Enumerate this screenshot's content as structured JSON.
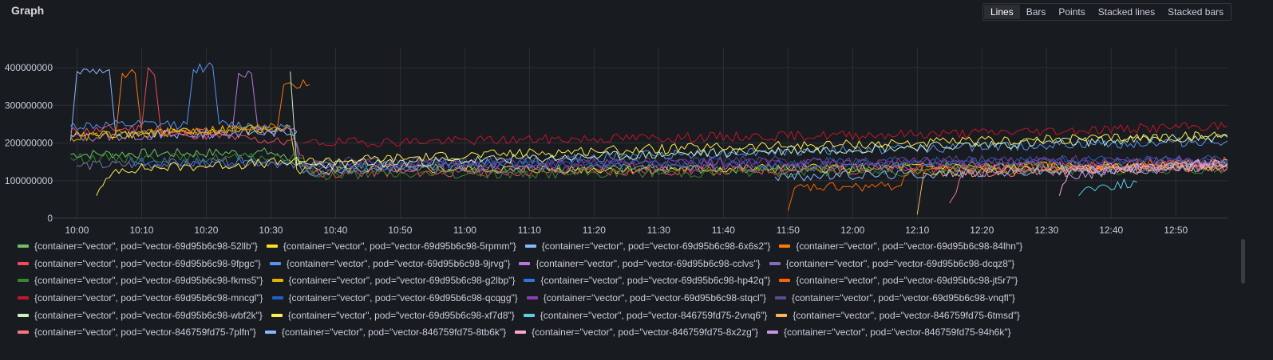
{
  "panel": {
    "title": "Graph"
  },
  "view_options": [
    {
      "label": "Lines",
      "active": true
    },
    {
      "label": "Bars",
      "active": false
    },
    {
      "label": "Points",
      "active": false
    },
    {
      "label": "Stacked lines",
      "active": false
    },
    {
      "label": "Stacked bars",
      "active": false
    }
  ],
  "chart_data": {
    "type": "line",
    "title": "",
    "xlabel": "",
    "ylabel": "",
    "x_ticks": [
      "10:00",
      "10:10",
      "10:20",
      "10:30",
      "10:40",
      "10:50",
      "11:00",
      "11:10",
      "11:20",
      "11:30",
      "11:40",
      "11:50",
      "12:00",
      "12:10",
      "12:20",
      "12:30",
      "12:40",
      "12:50"
    ],
    "y_ticks": [
      "0",
      "100000000",
      "200000000",
      "300000000",
      "400000000"
    ],
    "x_range": [
      "09:59",
      "12:58"
    ],
    "ylim": [
      0,
      420000000
    ],
    "grid": true,
    "legend_position": "bottom",
    "series": [
      {
        "name": "{container=\"vector\", pod=\"vector-69d95b6c98-52llb\"}",
        "color": "#73bf69",
        "start": "09:59",
        "end": "12:58",
        "segments": [
          [
            "09:59",
            170000000
          ],
          [
            "10:30",
            175000000
          ],
          [
            "10:35",
            140000000
          ],
          [
            "11:30",
            130000000
          ],
          [
            "12:58",
            145000000
          ]
        ]
      },
      {
        "name": "{container=\"vector\", pod=\"vector-69d95b6c98-5rpmm\"}",
        "color": "#fade2a",
        "start": "09:59",
        "end": "12:58",
        "segments": [
          [
            "09:59",
            220000000
          ],
          [
            "10:33",
            235000000
          ],
          [
            "10:34",
            130000000
          ],
          [
            "11:30",
            130000000
          ],
          [
            "12:58",
            140000000
          ]
        ]
      },
      {
        "name": "{container=\"vector\", pod=\"vector-69d95b6c98-6x6s2\"}",
        "color": "#8ab8ff",
        "start": "09:59",
        "end": "10:34",
        "segments": [
          [
            "09:59",
            205000000
          ],
          [
            "10:00",
            390000000
          ],
          [
            "10:05",
            395000000
          ],
          [
            "10:06",
            220000000
          ],
          [
            "10:34",
            230000000
          ]
        ]
      },
      {
        "name": "{container=\"vector\", pod=\"vector-69d95b6c98-84lhn\"}",
        "color": "#ff780a",
        "start": "10:06",
        "end": "10:36",
        "segments": [
          [
            "10:06",
            220000000
          ],
          [
            "10:07",
            385000000
          ],
          [
            "10:09",
            385000000
          ],
          [
            "10:10",
            230000000
          ],
          [
            "10:31",
            240000000
          ],
          [
            "10:32",
            355000000
          ],
          [
            "10:36",
            355000000
          ]
        ]
      },
      {
        "name": "{container=\"vector\", pod=\"vector-69d95b6c98-9fpgc\"}",
        "color": "#f2495c",
        "start": "09:59",
        "end": "12:58",
        "segments": [
          [
            "09:59",
            230000000
          ],
          [
            "10:10",
            240000000
          ],
          [
            "10:11",
            400000000
          ],
          [
            "10:12",
            380000000
          ],
          [
            "10:13",
            230000000
          ],
          [
            "10:34",
            200000000
          ],
          [
            "10:36",
            120000000
          ],
          [
            "12:58",
            135000000
          ]
        ]
      },
      {
        "name": "{container=\"vector\", pod=\"vector-69d95b6c98-9jrvg\"}",
        "color": "#5794f2",
        "start": "09:59",
        "end": "12:58",
        "segments": [
          [
            "09:59",
            245000000
          ],
          [
            "10:17",
            250000000
          ],
          [
            "10:18",
            395000000
          ],
          [
            "10:21",
            405000000
          ],
          [
            "10:22",
            250000000
          ],
          [
            "10:33",
            240000000
          ],
          [
            "10:35",
            120000000
          ],
          [
            "11:30",
            170000000
          ],
          [
            "12:58",
            205000000
          ]
        ]
      },
      {
        "name": "{container=\"vector\", pod=\"vector-69d95b6c98-cclvs\"}",
        "color": "#b877d9",
        "start": "09:59",
        "end": "10:34",
        "segments": [
          [
            "09:59",
            215000000
          ],
          [
            "10:24",
            225000000
          ],
          [
            "10:25",
            385000000
          ],
          [
            "10:27",
            385000000
          ],
          [
            "10:28",
            235000000
          ],
          [
            "10:34",
            230000000
          ]
        ]
      },
      {
        "name": "{container=\"vector\", pod=\"vector-69d95b6c98-dcqz8\"}",
        "color": "#806eb7",
        "start": "10:00",
        "end": "12:58",
        "segments": [
          [
            "10:00",
            140000000
          ],
          [
            "10:30",
            150000000
          ],
          [
            "10:36",
            130000000
          ],
          [
            "12:58",
            140000000
          ]
        ]
      },
      {
        "name": "{container=\"vector\", pod=\"vector-69d95b6c98-fkms5\"}",
        "color": "#37872d",
        "start": "09:59",
        "end": "12:58",
        "segments": [
          [
            "09:59",
            160000000
          ],
          [
            "10:35",
            160000000
          ],
          [
            "10:36",
            115000000
          ],
          [
            "12:58",
            130000000
          ]
        ]
      },
      {
        "name": "{container=\"vector\", pod=\"vector-69d95b6c98-g2lbp\"}",
        "color": "#e0b400",
        "start": "09:59",
        "end": "10:33",
        "segments": [
          [
            "09:59",
            215000000
          ],
          [
            "10:33",
            245000000
          ]
        ]
      },
      {
        "name": "{container=\"vector\", pod=\"vector-69d95b6c98-hp42q\"}",
        "color": "#3274d9",
        "start": "10:08",
        "end": "10:33",
        "segments": [
          [
            "10:08",
            150000000
          ],
          [
            "10:33",
            150000000
          ]
        ]
      },
      {
        "name": "{container=\"vector\", pod=\"vector-69d95b6c98-jt5r7\"}",
        "color": "#fa6400",
        "start": "11:50",
        "end": "12:58",
        "segments": [
          [
            "11:50",
            20000000
          ],
          [
            "11:51",
            80000000
          ],
          [
            "12:07",
            85000000
          ],
          [
            "12:09",
            130000000
          ],
          [
            "12:58",
            150000000
          ]
        ]
      },
      {
        "name": "{container=\"vector\", pod=\"vector-69d95b6c98-mncgl\"}",
        "color": "#c4162a",
        "start": "10:35",
        "end": "12:58",
        "segments": [
          [
            "10:35",
            200000000
          ],
          [
            "12:15",
            225000000
          ],
          [
            "12:58",
            245000000
          ]
        ]
      },
      {
        "name": "{container=\"vector\", pod=\"vector-69d95b6c98-qcqgg\"}",
        "color": "#1f60c4",
        "start": "10:35",
        "end": "12:58",
        "segments": [
          [
            "10:35",
            140000000
          ],
          [
            "12:58",
            155000000
          ]
        ]
      },
      {
        "name": "{container=\"vector\", pod=\"vector-69d95b6c98-stqcl\"}",
        "color": "#8f3bb8",
        "start": "10:35",
        "end": "12:58",
        "segments": [
          [
            "10:35",
            145000000
          ],
          [
            "12:58",
            150000000
          ]
        ]
      },
      {
        "name": "{container=\"vector\", pod=\"vector-69d95b6c98-vnqfl\"}",
        "color": "#5a4a8f",
        "start": "10:35",
        "end": "12:58",
        "segments": [
          [
            "10:35",
            150000000
          ],
          [
            "12:58",
            155000000
          ]
        ]
      },
      {
        "name": "{container=\"vector\", pod=\"vector-69d95b6c98-wbf2k\"}",
        "color": "#c8f2c2",
        "start": "10:33",
        "end": "12:58",
        "segments": [
          [
            "10:33",
            390000000
          ],
          [
            "10:34",
            140000000
          ],
          [
            "12:58",
            215000000
          ]
        ]
      },
      {
        "name": "{container=\"vector\", pod=\"vector-69d95b6c98-xf7d8\"}",
        "color": "#ffee52",
        "start": "10:03",
        "end": "12:58",
        "segments": [
          [
            "10:03",
            60000000
          ],
          [
            "10:06",
            130000000
          ],
          [
            "10:35",
            150000000
          ],
          [
            "11:20",
            180000000
          ],
          [
            "12:58",
            220000000
          ]
        ]
      },
      {
        "name": "{container=\"vector\", pod=\"vector-846759fd75-2vnq6\"}",
        "color": "#5ad0e9",
        "start": "12:35",
        "end": "12:44",
        "segments": [
          [
            "12:35",
            60000000
          ],
          [
            "12:36",
            80000000
          ],
          [
            "12:44",
            95000000
          ]
        ]
      },
      {
        "name": "{container=\"vector\", pod=\"vector-846759fd75-6tmsd\"}",
        "color": "#ffb357",
        "start": "12:10",
        "end": "12:58",
        "segments": [
          [
            "12:10",
            10000000
          ],
          [
            "12:11",
            120000000
          ],
          [
            "12:58",
            140000000
          ]
        ]
      },
      {
        "name": "{container=\"vector\", pod=\"vector-846759fd75-7plfn\"}",
        "color": "#ff7383",
        "start": "12:15",
        "end": "12:58",
        "segments": [
          [
            "12:15",
            40000000
          ],
          [
            "12:17",
            120000000
          ],
          [
            "12:58",
            135000000
          ]
        ]
      },
      {
        "name": "{container=\"vector\", pod=\"vector-846759fd75-8tb6k\"}",
        "color": "#8ab8ff",
        "start": "11:48",
        "end": "12:58",
        "segments": [
          [
            "11:48",
            110000000
          ],
          [
            "12:58",
            135000000
          ]
        ]
      },
      {
        "name": "{container=\"vector\", pod=\"vector-846759fd75-8x2zg\"}",
        "color": "#ffa6d0",
        "start": "12:32",
        "end": "12:58",
        "segments": [
          [
            "12:32",
            60000000
          ],
          [
            "12:34",
            130000000
          ],
          [
            "12:58",
            145000000
          ]
        ]
      },
      {
        "name": "{container=\"vector\", pod=\"vector-846759fd75-94h6k\"}",
        "color": "#ca95e5",
        "start": "12:32",
        "end": "12:58",
        "segments": [
          [
            "12:32",
            150000000
          ],
          [
            "12:33",
            110000000
          ],
          [
            "12:58",
            155000000
          ]
        ]
      }
    ]
  }
}
